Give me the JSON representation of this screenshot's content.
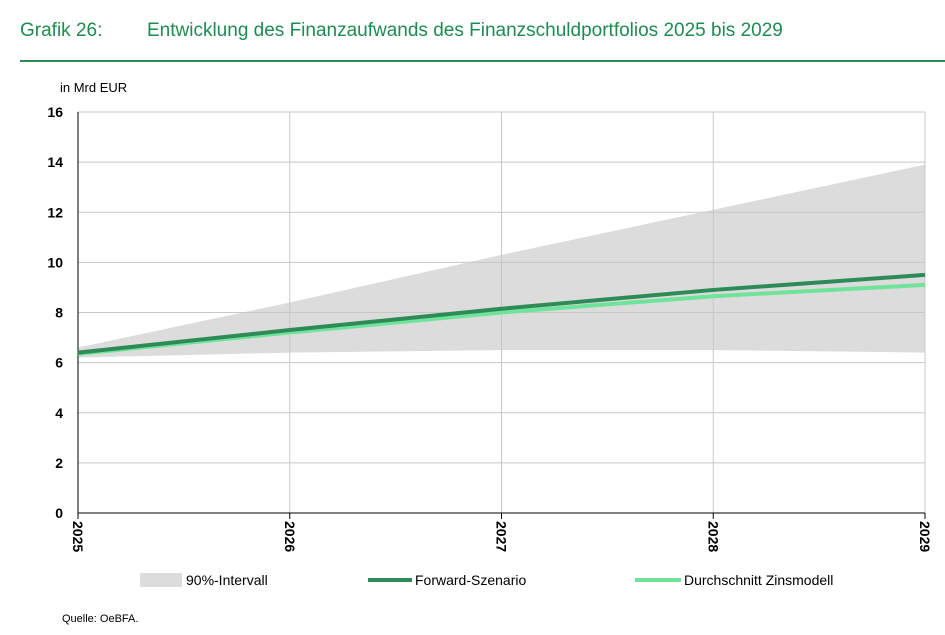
{
  "header": {
    "number": "Grafik 26:",
    "title": "Entwicklung des Finanzaufwands des Finanzschuldportfolios 2025 bis 2029"
  },
  "source": "Quelle: OeBFA.",
  "colors": {
    "band": "#dcdcdc",
    "forward": "#2e8b57",
    "zinsmodell": "#6fe39a",
    "header": "#1e8c52",
    "grid": "#c8c8c8"
  },
  "chart_data": {
    "type": "line",
    "title": "Entwicklung des Finanzaufwands des Finanzschuldportfolios 2025 bis 2029",
    "ylabel": "in Mrd EUR",
    "xlabel": "",
    "x": [
      "2025",
      "2026",
      "2027",
      "2028",
      "2029"
    ],
    "ylim": [
      0,
      16
    ],
    "yticks": [
      0,
      2,
      4,
      6,
      8,
      10,
      12,
      14,
      16
    ],
    "grid": true,
    "legend_position": "bottom",
    "band": {
      "name": "90%-Intervall",
      "upper": [
        6.6,
        8.4,
        10.3,
        12.1,
        13.9
      ],
      "lower": [
        6.2,
        6.4,
        6.5,
        6.5,
        6.4
      ]
    },
    "series": [
      {
        "name": "Forward-Szenario",
        "values": [
          6.4,
          7.3,
          8.15,
          8.9,
          9.5
        ]
      },
      {
        "name": "Durchschnitt Zinsmodell",
        "values": [
          6.35,
          7.2,
          8.0,
          8.65,
          9.1
        ]
      }
    ]
  }
}
